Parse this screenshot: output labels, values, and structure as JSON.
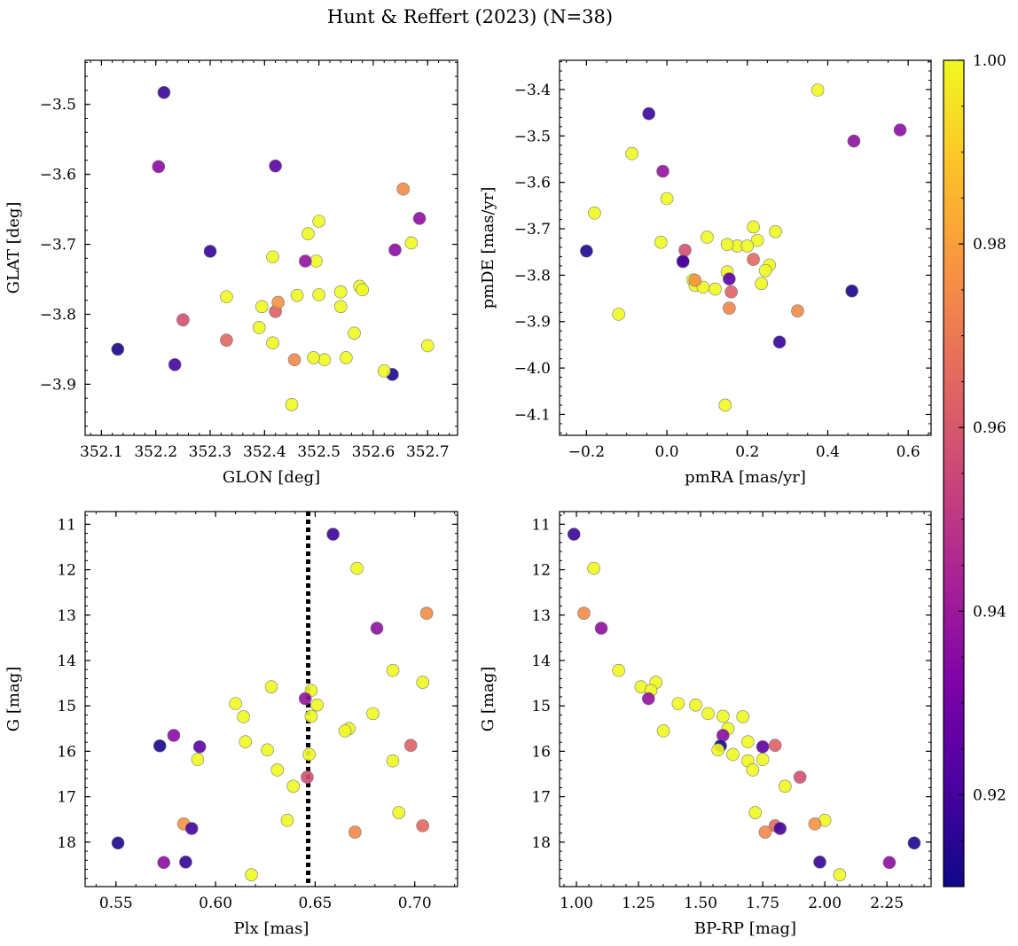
{
  "chart_data": {
    "type": "scatter",
    "title": "Hunt & Reffert (2023) (N=38)",
    "colorbar": {
      "range": [
        0.91,
        1.0
      ],
      "ticks": [
        0.92,
        0.94,
        0.96,
        0.98,
        1.0
      ],
      "tick_labels": [
        "0.92",
        "0.94",
        "0.96",
        "0.98",
        "1.00"
      ]
    },
    "stars": [
      {
        "glon": 352.215,
        "glat": -3.483,
        "pmra": -0.045,
        "pmde": -3.452,
        "plx": 0.659,
        "g": 11.22,
        "bprp": 0.99,
        "p": 0.918
      },
      {
        "glon": 352.67,
        "glat": -3.698,
        "pmra": -0.087,
        "pmde": -3.538,
        "plx": 0.671,
        "g": 11.97,
        "bprp": 1.07,
        "p": 1.0
      },
      {
        "glon": 352.655,
        "glat": -3.621,
        "pmra": 0.325,
        "pmde": -3.877,
        "plx": 0.706,
        "g": 12.96,
        "bprp": 1.03,
        "p": 0.975
      },
      {
        "glon": 352.685,
        "glat": -3.663,
        "pmra": 0.465,
        "pmde": -3.511,
        "plx": 0.681,
        "g": 13.29,
        "bprp": 1.1,
        "p": 0.937
      },
      {
        "glon": 352.7,
        "glat": -3.845,
        "pmra": -0.18,
        "pmde": -3.666,
        "plx": 0.689,
        "g": 14.22,
        "bprp": 1.17,
        "p": 1.0
      },
      {
        "glon": 352.5,
        "glat": -3.667,
        "pmra": 0.0,
        "pmde": -3.635,
        "plx": 0.704,
        "g": 14.48,
        "bprp": 1.32,
        "p": 1.0
      },
      {
        "glon": 352.415,
        "glat": -3.718,
        "pmra": 0.15,
        "pmde": -3.793,
        "plx": 0.628,
        "g": 14.58,
        "bprp": 1.26,
        "p": 1.0
      },
      {
        "glon": 352.495,
        "glat": -3.724,
        "pmra": 0.175,
        "pmde": -3.737,
        "plx": 0.648,
        "g": 14.66,
        "bprp": 1.3,
        "p": 1.0
      },
      {
        "glon": 352.475,
        "glat": -3.724,
        "pmra": -0.01,
        "pmde": -3.576,
        "plx": 0.645,
        "g": 14.84,
        "bprp": 1.29,
        "p": 0.938
      },
      {
        "glon": 352.54,
        "glat": -3.768,
        "pmra": 0.27,
        "pmde": -3.706,
        "plx": 0.651,
        "g": 14.98,
        "bprp": 1.48,
        "p": 1.0
      },
      {
        "glon": 352.575,
        "glat": -3.76,
        "pmra": 0.225,
        "pmde": -3.725,
        "plx": 0.61,
        "g": 14.95,
        "bprp": 1.41,
        "p": 1.0
      },
      {
        "glon": 352.58,
        "glat": -3.765,
        "pmra": 0.215,
        "pmde": -3.696,
        "plx": 0.679,
        "g": 15.17,
        "bprp": 1.53,
        "p": 1.0
      },
      {
        "glon": 352.395,
        "glat": -3.789,
        "pmra": 0.1,
        "pmde": -3.718,
        "plx": 0.648,
        "g": 15.23,
        "bprp": 1.59,
        "p": 1.0
      },
      {
        "glon": 352.33,
        "glat": -3.775,
        "pmra": 0.15,
        "pmde": -3.734,
        "plx": 0.614,
        "g": 15.24,
        "bprp": 1.67,
        "p": 1.0
      },
      {
        "glon": 352.54,
        "glat": -3.789,
        "pmra": -0.015,
        "pmde": -3.729,
        "plx": 0.667,
        "g": 15.5,
        "bprp": 1.61,
        "p": 1.0
      },
      {
        "glon": 352.5,
        "glat": -3.772,
        "pmra": 0.2,
        "pmde": -3.737,
        "plx": 0.665,
        "g": 15.55,
        "bprp": 1.35,
        "p": 1.0
      },
      {
        "glon": 352.205,
        "glat": -3.589,
        "pmra": 0.04,
        "pmde": -3.771,
        "plx": 0.579,
        "g": 15.65,
        "bprp": 1.59,
        "p": 0.935
      },
      {
        "glon": 352.46,
        "glat": -3.773,
        "pmra": 0.255,
        "pmde": -3.778,
        "plx": 0.615,
        "g": 15.79,
        "bprp": 1.69,
        "p": 1.0
      },
      {
        "glon": 352.42,
        "glat": -3.796,
        "pmra": 0.16,
        "pmde": -3.836,
        "plx": 0.698,
        "g": 15.87,
        "bprp": 1.8,
        "p": 0.963
      },
      {
        "glon": 352.42,
        "glat": -3.588,
        "pmra": 0.155,
        "pmde": -3.808,
        "plx": 0.592,
        "g": 15.9,
        "bprp": 1.75,
        "p": 0.925
      },
      {
        "glon": 352.13,
        "glat": -3.85,
        "pmra": 0.46,
        "pmde": -3.834,
        "plx": 0.572,
        "g": 15.88,
        "bprp": 1.58,
        "p": 0.912
      },
      {
        "glon": 352.48,
        "glat": -3.685,
        "pmra": 0.065,
        "pmde": -3.81,
        "plx": 0.626,
        "g": 15.97,
        "bprp": 1.57,
        "p": 1.0
      },
      {
        "glon": 352.565,
        "glat": -3.827,
        "pmra": 0.245,
        "pmde": -3.79,
        "plx": 0.647,
        "g": 16.07,
        "bprp": 1.63,
        "p": 1.0
      },
      {
        "glon": 352.51,
        "glat": -3.865,
        "pmra": 0.07,
        "pmde": -3.822,
        "plx": 0.591,
        "g": 16.18,
        "bprp": 1.75,
        "p": 1.0
      },
      {
        "glon": 352.55,
        "glat": -3.862,
        "pmra": 0.12,
        "pmde": -3.83,
        "plx": 0.689,
        "g": 16.21,
        "bprp": 1.69,
        "p": 1.0
      },
      {
        "glon": 352.39,
        "glat": -3.819,
        "pmra": 0.235,
        "pmde": -3.818,
        "plx": 0.631,
        "g": 16.41,
        "bprp": 1.71,
        "p": 1.0
      },
      {
        "glon": 352.25,
        "glat": -3.808,
        "pmra": 0.045,
        "pmde": -3.746,
        "plx": 0.646,
        "g": 16.57,
        "bprp": 1.9,
        "p": 0.958
      },
      {
        "glon": 352.635,
        "glat": -3.886,
        "pmra": -0.2,
        "pmde": -3.748,
        "plx": 0.551,
        "g": 18.02,
        "bprp": 2.36,
        "p": 0.913
      },
      {
        "glon": 352.62,
        "glat": -3.881,
        "pmra": 0.09,
        "pmde": -3.826,
        "plx": 0.639,
        "g": 16.77,
        "bprp": 1.84,
        "p": 1.0
      },
      {
        "glon": 352.415,
        "glat": -3.841,
        "pmra": -0.12,
        "pmde": -3.884,
        "plx": 0.692,
        "g": 17.35,
        "bprp": 1.72,
        "p": 1.0
      },
      {
        "glon": 352.45,
        "glat": -3.929,
        "pmra": 0.145,
        "pmde": -4.08,
        "plx": 0.636,
        "g": 17.52,
        "bprp": 2.0,
        "p": 1.0
      },
      {
        "glon": 352.425,
        "glat": -3.783,
        "pmra": 0.07,
        "pmde": -3.811,
        "plx": 0.584,
        "g": 17.6,
        "bprp": 1.96,
        "p": 0.977
      },
      {
        "glon": 352.33,
        "glat": -3.837,
        "pmra": 0.215,
        "pmde": -3.766,
        "plx": 0.704,
        "g": 17.64,
        "bprp": 1.8,
        "p": 0.965
      },
      {
        "glon": 352.235,
        "glat": -3.872,
        "pmra": 0.04,
        "pmde": -3.77,
        "plx": 0.588,
        "g": 17.7,
        "bprp": 1.82,
        "p": 0.92
      },
      {
        "glon": 352.455,
        "glat": -3.865,
        "pmra": 0.155,
        "pmde": -3.871,
        "plx": 0.67,
        "g": 17.78,
        "bprp": 1.76,
        "p": 0.974
      },
      {
        "glon": 352.3,
        "glat": -3.71,
        "pmra": 0.28,
        "pmde": -3.944,
        "plx": 0.585,
        "g": 18.44,
        "bprp": 1.98,
        "p": 0.917
      },
      {
        "glon": 352.64,
        "glat": -3.708,
        "pmra": 0.58,
        "pmde": -3.487,
        "plx": 0.574,
        "g": 18.45,
        "bprp": 2.26,
        "p": 0.936
      },
      {
        "glon": 352.49,
        "glat": -3.862,
        "pmra": 0.375,
        "pmde": -3.401,
        "plx": 0.618,
        "g": 18.72,
        "bprp": 2.06,
        "p": 1.0
      }
    ],
    "panels": [
      {
        "id": "glon-glat",
        "xkey": "glon",
        "ykey": "glat",
        "xlabel": "GLON [deg]",
        "ylabel": "GLAT [deg]",
        "xlim": [
          352.07,
          352.755
        ],
        "ylim": [
          -3.973,
          -3.437
        ],
        "invert_y": false,
        "xticks": [
          352.1,
          352.2,
          352.3,
          352.4,
          352.5,
          352.6,
          352.7
        ],
        "xtick_labels": [
          "352.1",
          "352.2",
          "352.3",
          "352.4",
          "352.5",
          "352.6",
          "352.7"
        ],
        "yticks": [
          -3.5,
          -3.6,
          -3.7,
          -3.8,
          -3.9
        ],
        "ytick_labels": [
          "−3.5",
          "−3.6",
          "−3.7",
          "−3.8",
          "−3.9"
        ],
        "xminor": 0.02,
        "yminor": 0.02
      },
      {
        "id": "pmra-pmde",
        "xkey": "pmra",
        "ykey": "pmde",
        "xlabel": "pmRA [mas/yr]",
        "ylabel": "pmDE [mas/yr]",
        "xlim": [
          -0.267,
          0.657
        ],
        "ylim": [
          -4.145,
          -3.337
        ],
        "invert_y": false,
        "xticks": [
          -0.2,
          0.0,
          0.2,
          0.4,
          0.6
        ],
        "xtick_labels": [
          "−0.2",
          "0.0",
          "0.2",
          "0.4",
          "0.6"
        ],
        "yticks": [
          -3.4,
          -3.5,
          -3.6,
          -3.7,
          -3.8,
          -3.9,
          -4.0,
          -4.1
        ],
        "ytick_labels": [
          "−3.4",
          "−3.5",
          "−3.6",
          "−3.7",
          "−3.8",
          "−3.9",
          "−4.0",
          "−4.1"
        ],
        "xminor": 0.05,
        "yminor": 0.02
      },
      {
        "id": "plx-g",
        "xkey": "plx",
        "ykey": "g",
        "xlabel": "Plx [mas]",
        "ylabel": "G [mag]",
        "xlim": [
          0.5345,
          0.7215
        ],
        "ylim": [
          10.72,
          18.98
        ],
        "invert_y": true,
        "xticks": [
          0.55,
          0.6,
          0.65,
          0.7
        ],
        "xtick_labels": [
          "0.55",
          "0.60",
          "0.65",
          "0.70"
        ],
        "yticks": [
          11,
          12,
          13,
          14,
          15,
          16,
          17,
          18
        ],
        "ytick_labels": [
          "11",
          "12",
          "13",
          "14",
          "15",
          "16",
          "17",
          "18"
        ],
        "xminor": 0.01,
        "yminor": 0.2,
        "vline": 0.6465
      },
      {
        "id": "bprp-g",
        "xkey": "bprp",
        "ykey": "g",
        "xlabel": "BP-RP [mag]",
        "ylabel": "G [mag]",
        "xlim": [
          0.932,
          2.428
        ],
        "ylim": [
          10.72,
          18.98
        ],
        "invert_y": true,
        "xticks": [
          1.0,
          1.25,
          1.5,
          1.75,
          2.0,
          2.25
        ],
        "xtick_labels": [
          "1.00",
          "1.25",
          "1.50",
          "1.75",
          "2.00",
          "2.25"
        ],
        "yticks": [
          11,
          12,
          13,
          14,
          15,
          16,
          17,
          18
        ],
        "ytick_labels": [
          "11",
          "12",
          "13",
          "14",
          "15",
          "16",
          "17",
          "18"
        ],
        "xminor": 0.05,
        "yminor": 0.2
      }
    ]
  }
}
